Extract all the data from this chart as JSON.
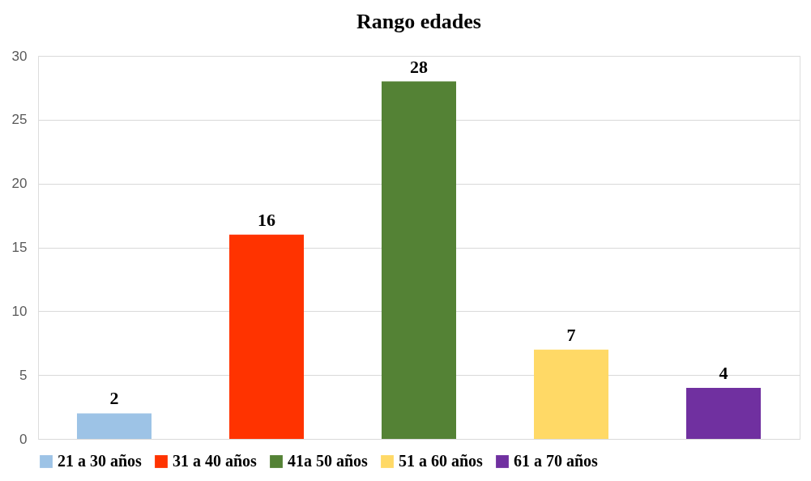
{
  "chart_data": {
    "type": "bar",
    "title": "Rango edades",
    "categories": [
      null,
      null,
      null,
      null,
      null
    ],
    "series": [
      {
        "name": "21 a 30 años",
        "color": "#9dc3e6",
        "values": [
          2,
          null,
          null,
          null,
          null
        ]
      },
      {
        "name": "31 a 40 años",
        "color": "#ff3300",
        "values": [
          null,
          16,
          null,
          null,
          null
        ]
      },
      {
        "name": "41a 50 años",
        "color": "#548235",
        "values": [
          null,
          null,
          28,
          null,
          null
        ]
      },
      {
        "name": "51 a 60 años",
        "color": "#ffd966",
        "values": [
          null,
          null,
          null,
          7,
          null
        ]
      },
      {
        "name": "61 a 70 años",
        "color": "#7030a0",
        "values": [
          null,
          null,
          null,
          null,
          4
        ]
      }
    ],
    "ylim": [
      0,
      30
    ],
    "yticks": [
      0,
      5,
      10,
      15,
      20,
      25,
      30
    ],
    "grid": "y",
    "legend": "bottom",
    "tick_labels": "y",
    "data_labels": true
  }
}
